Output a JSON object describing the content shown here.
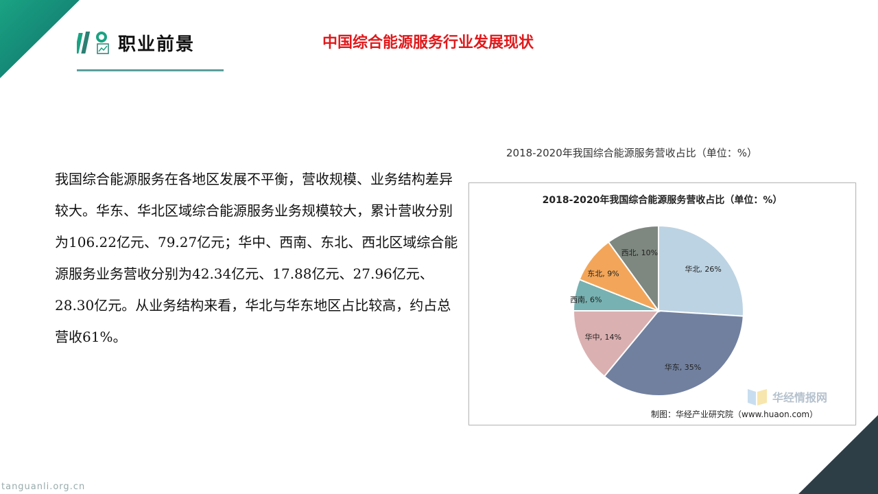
{
  "header": {
    "logo_text": "职业前景",
    "title": "中国综合能源服务行业发展现状"
  },
  "body": {
    "paragraph": "我国综合能源服务在各地区发展不平衡，营收规模、业务结构差异较大。华东、华北区域综合能源服务业务规模较大，累计营收分别为106.22亿元、79.27亿元；华中、西南、东北、西北区域综合能源服务业务营收分别为42.34亿元、17.88亿元、27.96亿元、28.30亿元。从业务结构来看，华北与华东地区占比较高，约占总营收61%。"
  },
  "figure": {
    "outer_caption": "2018-2020年我国综合能源服务营收占比（单位：%）",
    "source": "制图：华经产业研究院（www.huaon.com）",
    "watermark": "华经情报网"
  },
  "footer": {
    "site": "tanguanli.org.cn"
  },
  "colors": {
    "accent_red": "#e0191b",
    "corner_green": "#1aa383",
    "corner_dark": "#2e3e46"
  },
  "chart_data": {
    "type": "pie",
    "title": "2018-2020年我国综合能源服务营收占比（单位：%）",
    "slices": [
      {
        "name": "华北",
        "value": 26,
        "label": "华北, 26%",
        "color": "#bcd3e3"
      },
      {
        "name": "华东",
        "value": 35,
        "label": "华东, 35%",
        "color": "#71809f"
      },
      {
        "name": "华中",
        "value": 14,
        "label": "华中, 14%",
        "color": "#dbb0b1"
      },
      {
        "name": "西南",
        "value": 6,
        "label": "西南, 6%",
        "color": "#77b1b1"
      },
      {
        "name": "东北",
        "value": 9,
        "label": "东北, 9%",
        "color": "#f3a659"
      },
      {
        "name": "西北",
        "value": 10,
        "label": "西北, 10%",
        "color": "#7e8780"
      }
    ]
  }
}
